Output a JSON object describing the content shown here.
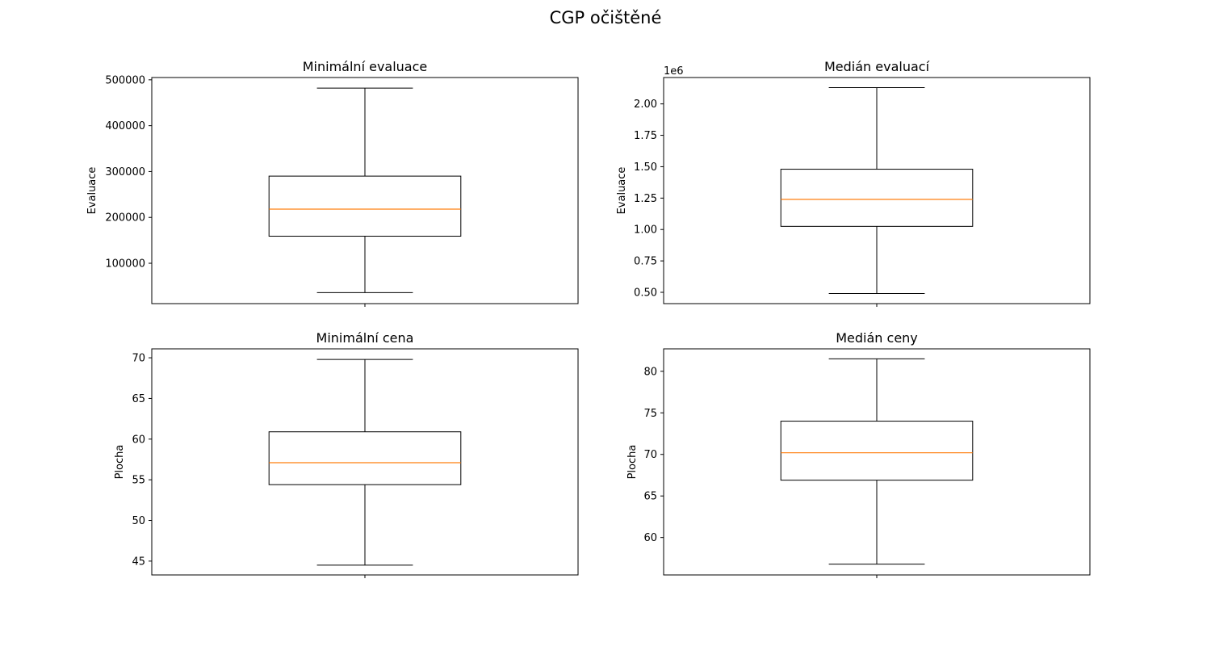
{
  "figure": {
    "suptitle": "CGP očištěné"
  },
  "chart_data": [
    {
      "type": "boxplot",
      "title": "Minimální evaluace",
      "xlabel": "",
      "ylabel": "Evaluace",
      "ylim": [
        12000,
        505000
      ],
      "yticks": [
        100000,
        200000,
        300000,
        400000,
        500000
      ],
      "ytick_labels": [
        "100000",
        "200000",
        "300000",
        "400000",
        "500000"
      ],
      "offset_text": "",
      "box": {
        "whisker_low": 36000,
        "q1": 159000,
        "median": 218000,
        "q3": 290000,
        "whisker_high": 482000
      },
      "median_color": "#ff7f0e",
      "grid": false
    },
    {
      "type": "boxplot",
      "title": "Medián evaluací",
      "xlabel": "",
      "ylabel": "Evaluace",
      "ylim": [
        0.41,
        2.21
      ],
      "yticks": [
        0.5,
        0.75,
        1.0,
        1.25,
        1.5,
        1.75,
        2.0
      ],
      "ytick_labels": [
        "0.50",
        "0.75",
        "1.00",
        "1.25",
        "1.50",
        "1.75",
        "2.00"
      ],
      "offset_text": "1e6",
      "box": {
        "whisker_low": 0.49,
        "q1": 1.025,
        "median": 1.24,
        "q3": 1.48,
        "whisker_high": 2.13
      },
      "median_color": "#ff7f0e",
      "grid": false
    },
    {
      "type": "boxplot",
      "title": "Minimální cena",
      "xlabel": "",
      "ylabel": "Plocha",
      "ylim": [
        43.3,
        71.1
      ],
      "yticks": [
        45,
        50,
        55,
        60,
        65,
        70
      ],
      "ytick_labels": [
        "45",
        "50",
        "55",
        "60",
        "65",
        "70"
      ],
      "offset_text": "",
      "box": {
        "whisker_low": 44.5,
        "q1": 54.4,
        "median": 57.1,
        "q3": 60.9,
        "whisker_high": 69.8
      },
      "median_color": "#ff7f0e",
      "grid": false
    },
    {
      "type": "boxplot",
      "title": "Medián ceny",
      "xlabel": "",
      "ylabel": "Plocha",
      "ylim": [
        55.5,
        82.7
      ],
      "yticks": [
        60,
        65,
        70,
        75,
        80
      ],
      "ytick_labels": [
        "60",
        "65",
        "70",
        "75",
        "80"
      ],
      "offset_text": "",
      "box": {
        "whisker_low": 56.8,
        "q1": 66.9,
        "median": 70.2,
        "q3": 74.0,
        "whisker_high": 81.5
      },
      "median_color": "#ff7f0e",
      "grid": false
    }
  ]
}
